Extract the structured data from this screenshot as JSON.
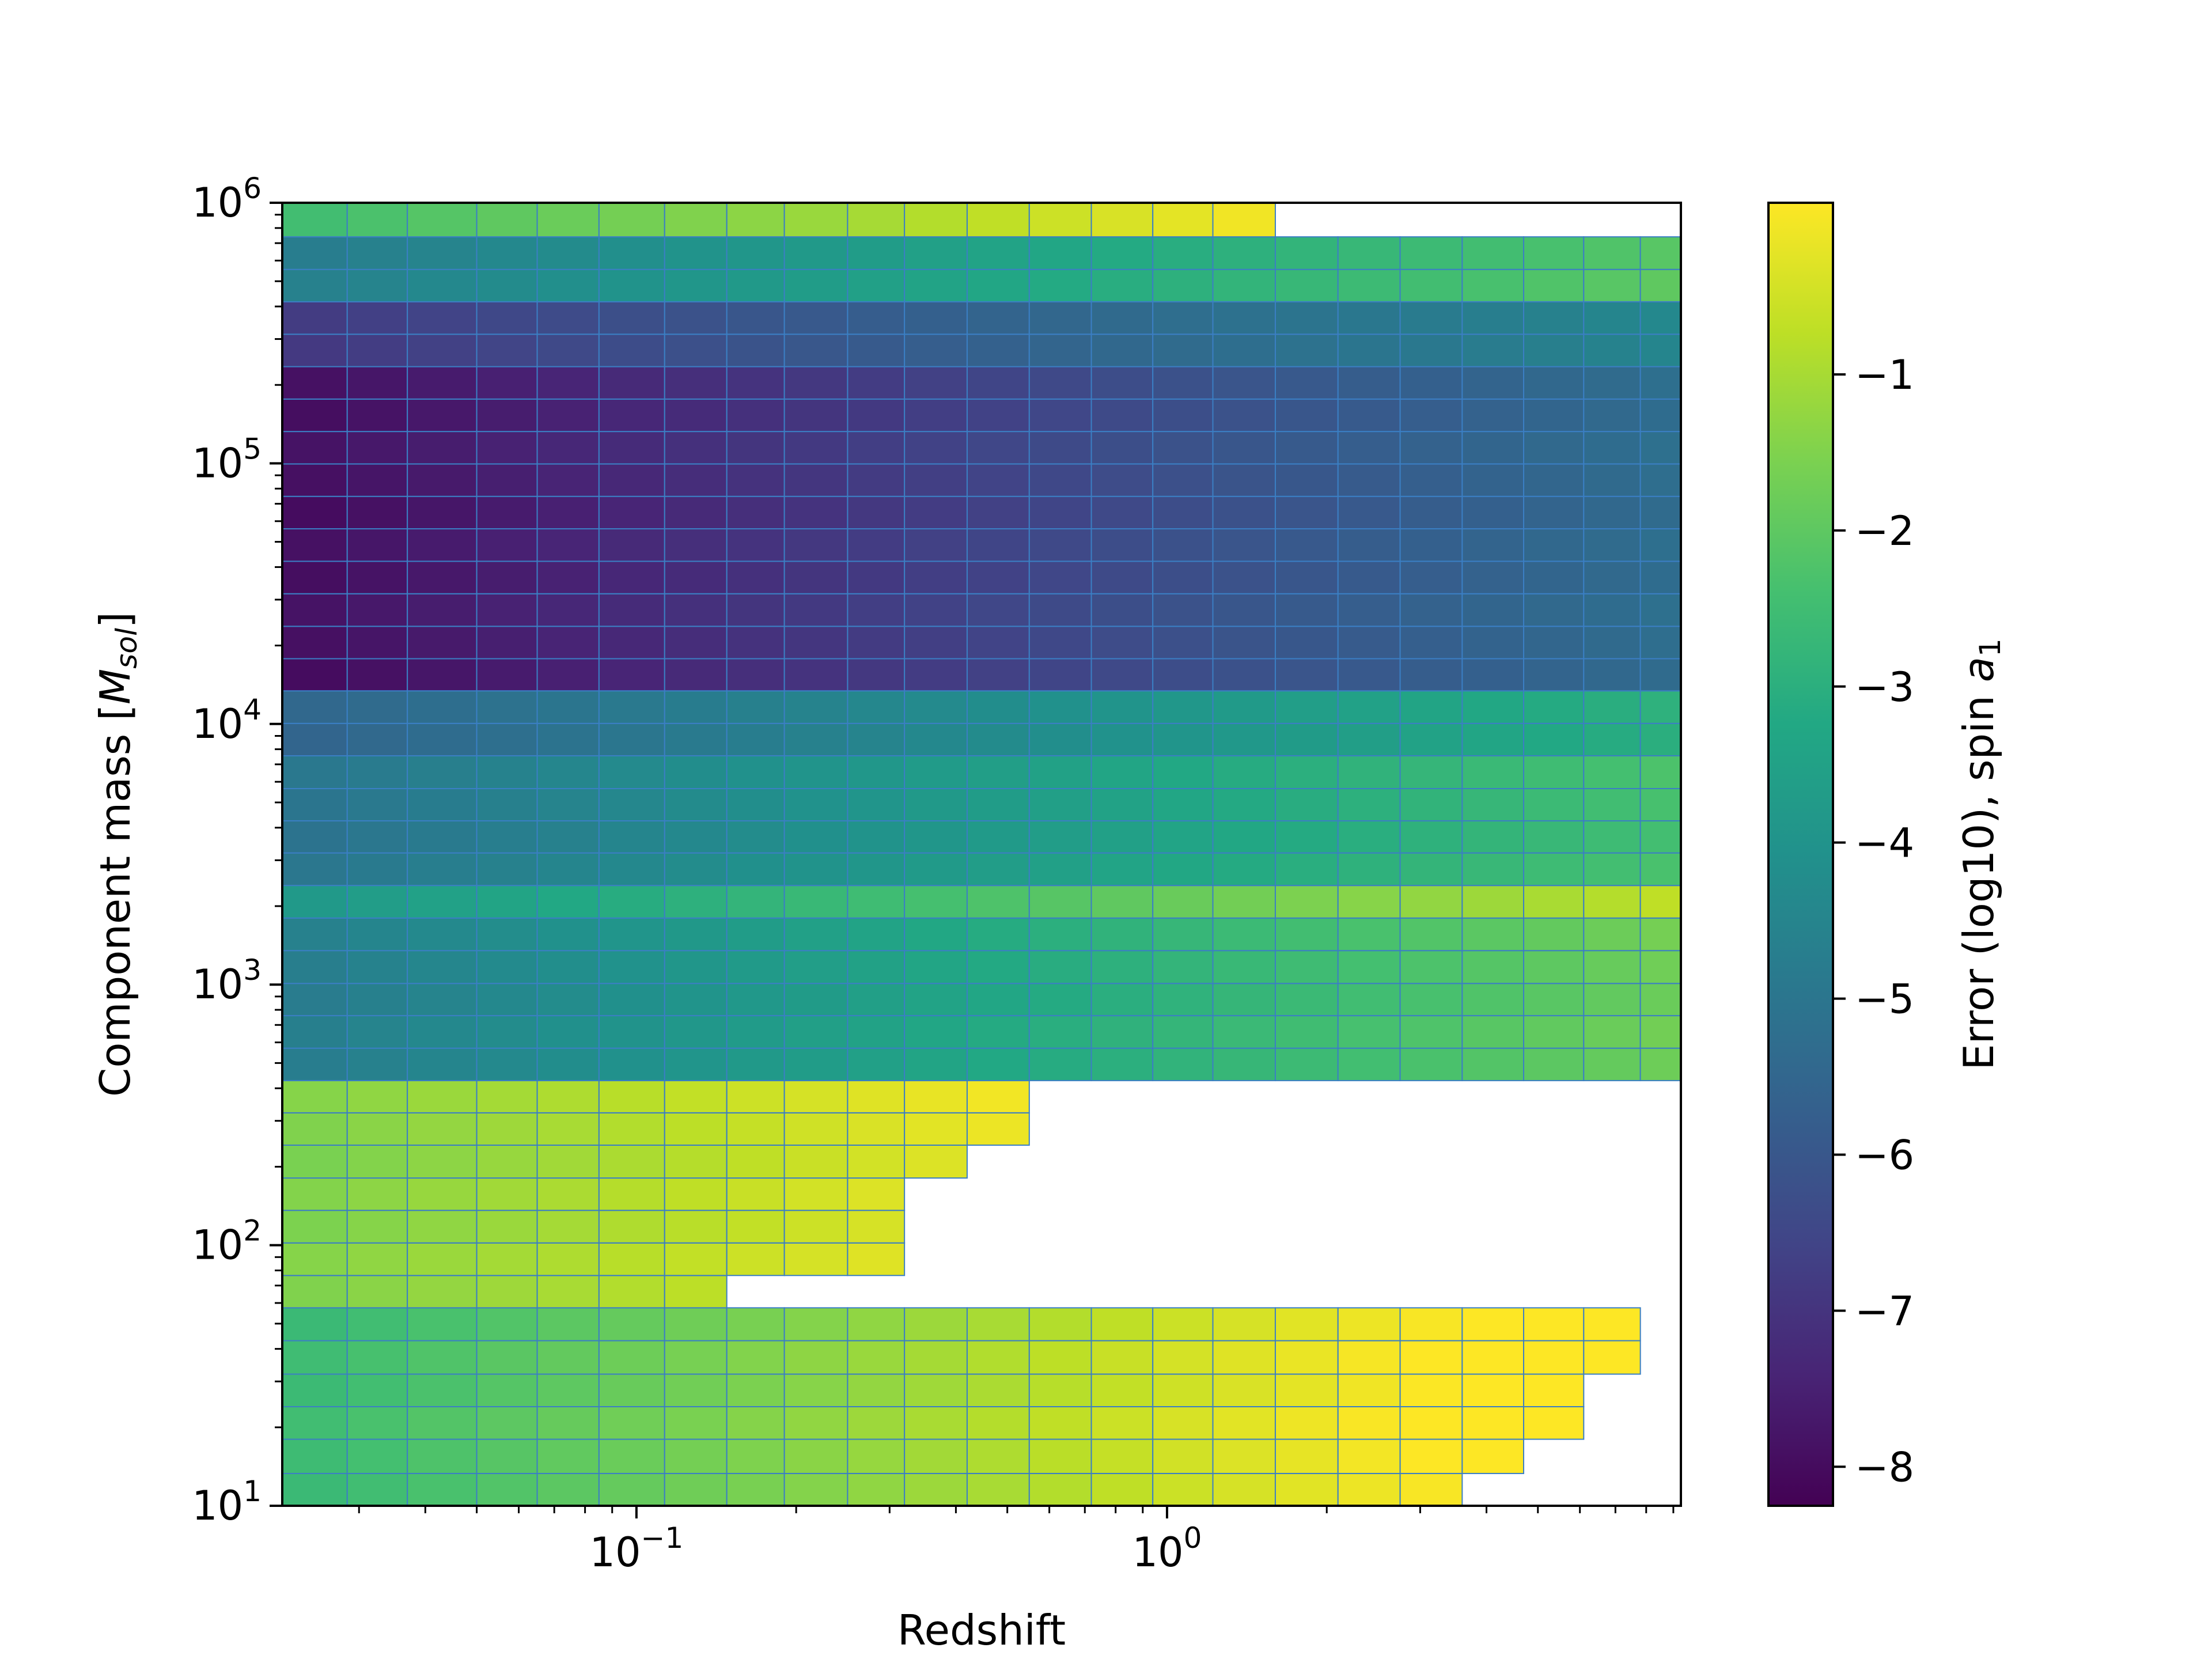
{
  "chart_data": {
    "type": "heatmap",
    "title": "",
    "xlabel": "Redshift",
    "ylabel_main": "Component mass [",
    "ylabel_sym": "M",
    "ylabel_sub": "sol",
    "ylabel_close": "]",
    "colorbar_label_main": "Error (log10), spin ",
    "colorbar_label_sym": "a",
    "colorbar_label_sub": "1",
    "xscale": "log",
    "yscale": "log",
    "xlim": [
      0.0215,
      9.3
    ],
    "ylim": [
      10,
      1000000
    ],
    "clim": [
      -8.25,
      0.1
    ],
    "colormap": "viridis",
    "x_ticks": [
      {
        "value": 0.1,
        "base": "10",
        "exp": "−1"
      },
      {
        "value": 1,
        "base": "10",
        "exp": "0"
      }
    ],
    "y_ticks": [
      {
        "value": 10,
        "base": "10",
        "exp": "1"
      },
      {
        "value": 100,
        "base": "10",
        "exp": "2"
      },
      {
        "value": 1000,
        "base": "10",
        "exp": "3"
      },
      {
        "value": 10000,
        "base": "10",
        "exp": "4"
      },
      {
        "value": 100000,
        "base": "10",
        "exp": "5"
      },
      {
        "value": 1000000,
        "base": "10",
        "exp": "6"
      }
    ],
    "colorbar_ticks": [
      {
        "value": -1,
        "label": "−1"
      },
      {
        "value": -2,
        "label": "−2"
      },
      {
        "value": -3,
        "label": "−3"
      },
      {
        "value": -4,
        "label": "−4"
      },
      {
        "value": -5,
        "label": "−5"
      },
      {
        "value": -6,
        "label": "−6"
      },
      {
        "value": -7,
        "label": "−7"
      },
      {
        "value": -8,
        "label": "−8"
      }
    ],
    "x_edges": [
      0.0215,
      0.0285,
      0.037,
      0.05,
      0.065,
      0.085,
      0.113,
      0.148,
      0.19,
      0.25,
      0.32,
      0.42,
      0.55,
      0.72,
      0.94,
      1.22,
      1.6,
      2.1,
      2.75,
      3.6,
      4.7,
      6.1,
      7.8,
      9.3
    ],
    "y_edges": [
      10,
      13.3,
      18,
      24,
      32,
      43,
      57.5,
      76.5,
      102,
      136,
      181,
      242,
      322,
      428,
      570,
      760,
      1010,
      1350,
      1800,
      2400,
      3200,
      4250,
      5650,
      7550,
      10050,
      13400,
      17800,
      23700,
      31600,
      42100,
      56100,
      74700,
      99500,
      132500,
      176500,
      235000,
      313000,
      417000,
      555000,
      740000,
      1000000
    ],
    "mass_bands": [
      {
        "name": "band-10",
        "row_start": 0,
        "row_end": 6,
        "v_start": -2.55,
        "v_slope": 0.148,
        "cut_rows": [
          {
            "row": 0,
            "last_col": 19
          },
          {
            "row": 1,
            "last_col": 20
          },
          {
            "row": 2,
            "last_col": 21
          },
          {
            "row": 3,
            "last_col": 21
          },
          {
            "row": 4,
            "last_col": 22
          },
          {
            "row": 5,
            "last_col": 22
          }
        ]
      },
      {
        "name": "band-100",
        "row_start": 6,
        "row_end": 13,
        "v_start": -1.5,
        "v_slope": 0.125,
        "cut_rows": [
          {
            "row": 6,
            "last_col": 7
          },
          {
            "row": 7,
            "last_col": 10
          },
          {
            "row": 8,
            "last_col": 10
          },
          {
            "row": 9,
            "last_col": 10
          },
          {
            "row": 10,
            "last_col": 11
          },
          {
            "row": 11,
            "last_col": 12
          },
          {
            "row": 12,
            "last_col": 12
          }
        ]
      },
      {
        "name": "band-1000",
        "row_start": 13,
        "row_end": 18,
        "v_start": -4.7,
        "v_slope": 0.135,
        "cut_rows": []
      },
      {
        "name": "band-1000-top",
        "row_start": 18,
        "row_end": 19,
        "v_start": -3.75,
        "v_slope": 0.14,
        "cut_rows": []
      },
      {
        "name": "band-10000",
        "row_start": 19,
        "row_end": 23,
        "v_start": -5.0,
        "v_slope": 0.12,
        "cut_rows": []
      },
      {
        "name": "band-10000-top",
        "row_start": 23,
        "row_end": 25,
        "v_start": -5.5,
        "v_slope": 0.115,
        "cut_rows": []
      },
      {
        "name": "band-100000",
        "row_start": 25,
        "row_end": 35,
        "v_start": -7.9,
        "v_slope": 0.12,
        "cut_rows": []
      },
      {
        "name": "band-100000-top",
        "row_start": 35,
        "row_end": 37,
        "v_start": -6.8,
        "v_slope": 0.11,
        "cut_rows": []
      },
      {
        "name": "band-1000000",
        "row_start": 37,
        "row_end": 39,
        "v_start": -4.7,
        "v_slope": 0.12,
        "cut_rows": []
      },
      {
        "name": "band-1000000-top",
        "row_start": 39,
        "row_end": 40,
        "v_start": -2.5,
        "v_slope": 0.16,
        "cut_rows": [
          {
            "row": 39,
            "last_col": 16
          }
        ]
      }
    ]
  }
}
